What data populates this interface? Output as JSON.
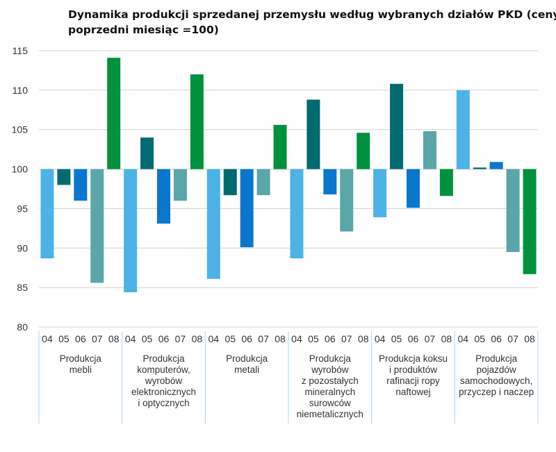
{
  "chart_data": {
    "type": "bar",
    "title_lines": [
      "Dynamika produkcji sprzedanej przemysłu według wybranych działów PKD (ceny stałe;",
      "poprzedni miesiąc =100)"
    ],
    "baseline": 100,
    "ylim": [
      80,
      115
    ],
    "yticks": [
      80,
      85,
      90,
      95,
      100,
      105,
      110,
      115
    ],
    "months": [
      "04",
      "05",
      "06",
      "07",
      "08"
    ],
    "month_colors": [
      "#4cb3e8",
      "#006b70",
      "#0a77cf",
      "#5aa6a8",
      "#00913f"
    ],
    "groups": [
      {
        "label_lines": [
          "Produkcja",
          "mebli"
        ],
        "values": [
          88.7,
          98.0,
          96.0,
          85.6,
          114.1
        ]
      },
      {
        "label_lines": [
          "Produkcja",
          "komputerów,",
          "wyrobów",
          "elektronicznych",
          "i optycznych"
        ],
        "values": [
          84.4,
          104.0,
          93.1,
          96.0,
          112.0
        ]
      },
      {
        "label_lines": [
          "Produkcja",
          "metali"
        ],
        "values": [
          86.1,
          96.7,
          90.1,
          96.7,
          105.6
        ]
      },
      {
        "label_lines": [
          "Produkcja",
          "wyrobów",
          "z pozostałych",
          "mineralnych",
          "surowców",
          "niemetalicznych"
        ],
        "values": [
          88.7,
          108.8,
          96.8,
          92.1,
          104.6
        ]
      },
      {
        "label_lines": [
          "Produkcja koksu",
          "i produktów",
          "rafinacji ropy",
          "naftowej"
        ],
        "values": [
          93.9,
          110.8,
          95.1,
          104.8,
          96.6
        ]
      },
      {
        "label_lines": [
          "Produkcja",
          "pojazdów",
          "samochodowych,",
          "przyczep i naczep"
        ],
        "values": [
          110.0,
          100.2,
          100.9,
          89.5,
          86.7
        ]
      }
    ]
  }
}
